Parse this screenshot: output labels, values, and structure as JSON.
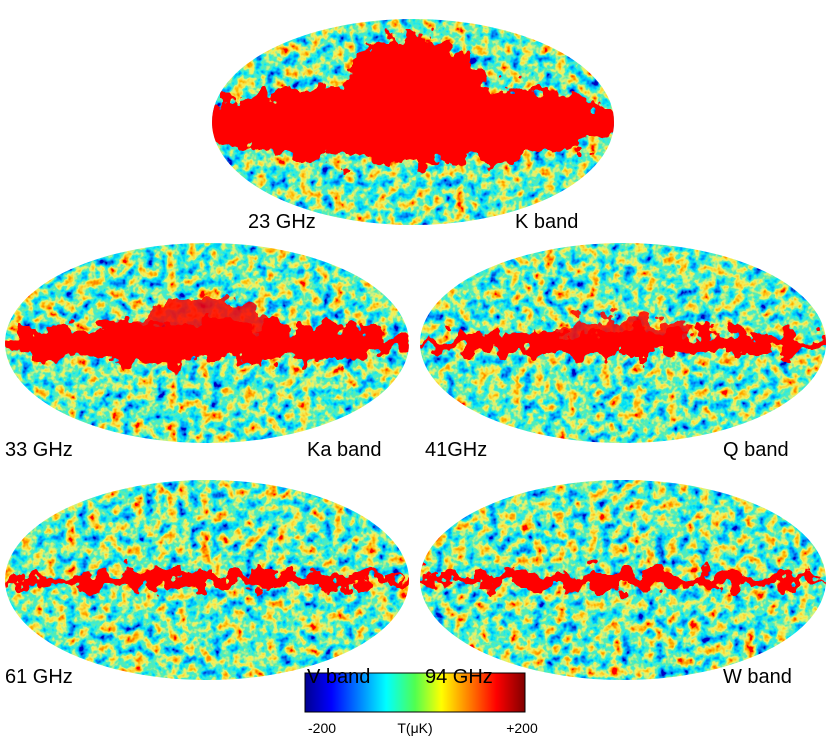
{
  "panels": [
    {
      "frequency": "23 GHz",
      "band": "K band"
    },
    {
      "frequency": "33 GHz",
      "band": "Ka band"
    },
    {
      "frequency": "41GHz",
      "band": "Q band"
    },
    {
      "frequency": "61 GHz",
      "band": "V band"
    },
    {
      "frequency": "94 GHz",
      "band": "W band"
    }
  ],
  "colorbar": {
    "min_label": "-200",
    "label": "T(μK)",
    "max_label": "+200"
  }
}
